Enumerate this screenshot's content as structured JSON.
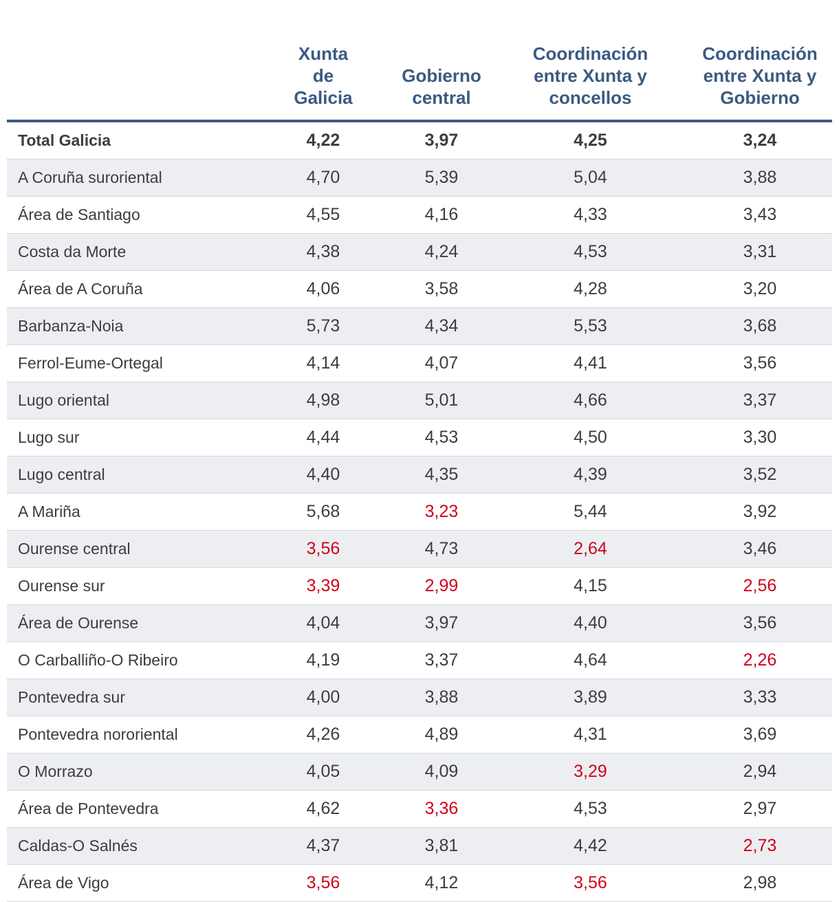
{
  "chart_data": {
    "type": "table",
    "columns": [
      "Xunta de Galicia",
      "Gobierno central",
      "Coordinación entre Xunta y concellos",
      "Coordinación entre Xunta y Gobierno"
    ],
    "header_lines": [
      [
        "Xunta",
        "de",
        "Galicia"
      ],
      [
        "Gobierno",
        "central"
      ],
      [
        "Coordinación",
        "entre Xunta y",
        "concellos"
      ],
      [
        "Coordinación",
        "entre Xunta y",
        "Gobierno"
      ]
    ],
    "rows": [
      {
        "name": "Total Galicia",
        "values": [
          "4,22",
          "3,97",
          "4,25",
          "3,24"
        ],
        "highlight": [
          false,
          false,
          false,
          false
        ]
      },
      {
        "name": "A Coruña suroriental",
        "values": [
          "4,70",
          "5,39",
          "5,04",
          "3,88"
        ],
        "highlight": [
          false,
          false,
          false,
          false
        ]
      },
      {
        "name": "Área de Santiago",
        "values": [
          "4,55",
          "4,16",
          "4,33",
          "3,43"
        ],
        "highlight": [
          false,
          false,
          false,
          false
        ]
      },
      {
        "name": "Costa da Morte",
        "values": [
          "4,38",
          "4,24",
          "4,53",
          "3,31"
        ],
        "highlight": [
          false,
          false,
          false,
          false
        ]
      },
      {
        "name": "Área de A Coruña",
        "values": [
          "4,06",
          "3,58",
          "4,28",
          "3,20"
        ],
        "highlight": [
          false,
          false,
          false,
          false
        ]
      },
      {
        "name": "Barbanza-Noia",
        "values": [
          "5,73",
          "4,34",
          "5,53",
          "3,68"
        ],
        "highlight": [
          false,
          false,
          false,
          false
        ]
      },
      {
        "name": "Ferrol-Eume-Ortegal",
        "values": [
          "4,14",
          "4,07",
          "4,41",
          "3,56"
        ],
        "highlight": [
          false,
          false,
          false,
          false
        ]
      },
      {
        "name": "Lugo oriental",
        "values": [
          "4,98",
          "5,01",
          "4,66",
          "3,37"
        ],
        "highlight": [
          false,
          false,
          false,
          false
        ]
      },
      {
        "name": "Lugo sur",
        "values": [
          "4,44",
          "4,53",
          "4,50",
          "3,30"
        ],
        "highlight": [
          false,
          false,
          false,
          false
        ]
      },
      {
        "name": "Lugo central",
        "values": [
          "4,40",
          "4,35",
          "4,39",
          "3,52"
        ],
        "highlight": [
          false,
          false,
          false,
          false
        ]
      },
      {
        "name": "A Mariña",
        "values": [
          "5,68",
          "3,23",
          "5,44",
          "3,92"
        ],
        "highlight": [
          false,
          true,
          false,
          false
        ]
      },
      {
        "name": "Ourense central",
        "values": [
          "3,56",
          "4,73",
          "2,64",
          "3,46"
        ],
        "highlight": [
          true,
          false,
          true,
          false
        ]
      },
      {
        "name": "Ourense sur",
        "values": [
          "3,39",
          "2,99",
          "4,15",
          "2,56"
        ],
        "highlight": [
          true,
          true,
          false,
          true
        ]
      },
      {
        "name": "Área de Ourense",
        "values": [
          "4,04",
          "3,97",
          "4,40",
          "3,56"
        ],
        "highlight": [
          false,
          false,
          false,
          false
        ]
      },
      {
        "name": "O Carballiño-O Ribeiro",
        "values": [
          "4,19",
          "3,37",
          "4,64",
          "2,26"
        ],
        "highlight": [
          false,
          false,
          false,
          true
        ]
      },
      {
        "name": "Pontevedra sur",
        "values": [
          "4,00",
          "3,88",
          "3,89",
          "3,33"
        ],
        "highlight": [
          false,
          false,
          false,
          false
        ]
      },
      {
        "name": "Pontevedra nororiental",
        "values": [
          "4,26",
          "4,89",
          "4,31",
          "3,69"
        ],
        "highlight": [
          false,
          false,
          false,
          false
        ]
      },
      {
        "name": "O Morrazo",
        "values": [
          "4,05",
          "4,09",
          "3,29",
          "2,94"
        ],
        "highlight": [
          false,
          false,
          true,
          false
        ]
      },
      {
        "name": "Área de Pontevedra",
        "values": [
          "4,62",
          "3,36",
          "4,53",
          "2,97"
        ],
        "highlight": [
          false,
          true,
          false,
          false
        ]
      },
      {
        "name": "Caldas-O Salnés",
        "values": [
          "4,37",
          "3,81",
          "4,42",
          "2,73"
        ],
        "highlight": [
          false,
          false,
          false,
          true
        ]
      },
      {
        "name": "Área de Vigo",
        "values": [
          "3,56",
          "4,12",
          "3,56",
          "2,98"
        ],
        "highlight": [
          true,
          false,
          true,
          false
        ]
      }
    ],
    "colors": {
      "header_text": "#3b5a82",
      "header_rule": "#3f5b82",
      "row_alt": "#eceef2",
      "highlight": "#d0021b",
      "text": "#3d3d3d"
    }
  }
}
